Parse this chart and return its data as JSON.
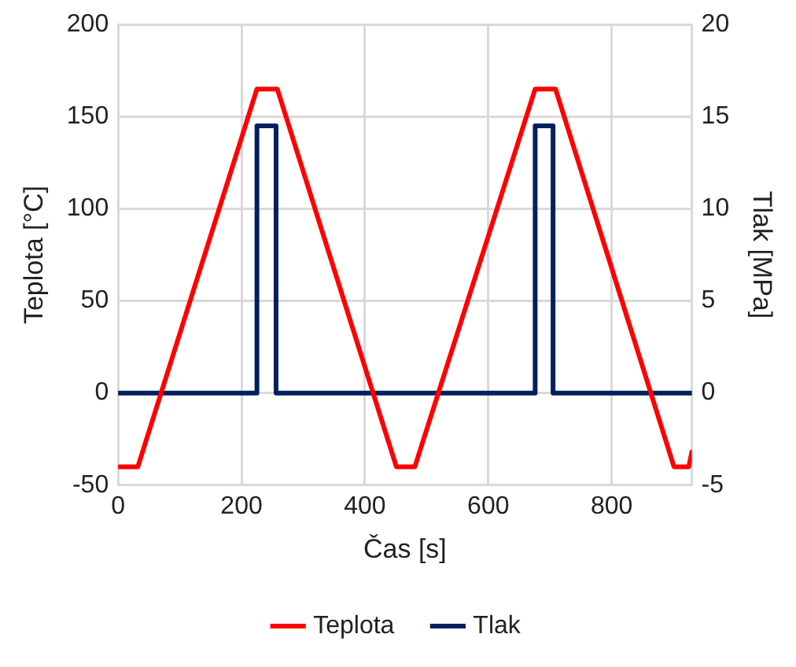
{
  "chart_data": {
    "type": "line",
    "xlabel": "Čas [s]",
    "ylabel": "Teplota [°C]",
    "y2label": "Tlak [MPa]",
    "xlim": [
      0,
      930
    ],
    "xticks": [
      0,
      200,
      400,
      600,
      800
    ],
    "ylim": [
      -50,
      200
    ],
    "yticks": [
      -50,
      0,
      50,
      100,
      150,
      200
    ],
    "y2lim": [
      -5,
      20
    ],
    "y2ticks": [
      -5,
      0,
      5,
      10,
      15,
      20
    ],
    "grid": true,
    "legend": "bottom",
    "marker": "none",
    "line_style": "solid",
    "series": [
      {
        "name": "Teplota",
        "color": "#ff0000",
        "x": [
          0,
          32,
          225,
          258,
          451,
          481,
          676,
          709,
          901,
          925,
          930
        ],
        "values": [
          -40,
          -40,
          165,
          165,
          -40,
          -40,
          165,
          165,
          -40,
          -40,
          -32
        ]
      },
      {
        "name": "Tlak",
        "color": "#002060",
        "axis": "y2",
        "x": [
          0,
          225,
          225,
          256,
          256,
          676,
          676,
          705,
          705,
          930
        ],
        "values": [
          0,
          0,
          14.5,
          14.5,
          0,
          0,
          14.5,
          14.5,
          0,
          0
        ]
      }
    ]
  }
}
